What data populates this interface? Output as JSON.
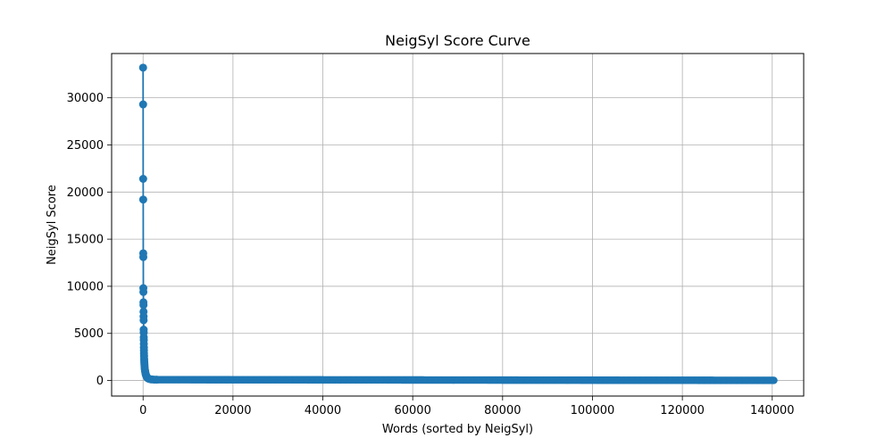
{
  "chart_data": {
    "type": "line",
    "title": "NeigSyl Score Curve",
    "xlabel": "Words (sorted by NeigSyl)",
    "ylabel": "NeigSyl Score",
    "xlim": [
      -7000,
      147000
    ],
    "ylim": [
      -1650,
      34700
    ],
    "xticks": [
      0,
      20000,
      40000,
      60000,
      80000,
      100000,
      120000,
      140000
    ],
    "xtick_labels": [
      "0",
      "20000",
      "40000",
      "60000",
      "80000",
      "100000",
      "120000",
      "140000"
    ],
    "yticks": [
      0,
      5000,
      10000,
      15000,
      20000,
      25000,
      30000
    ],
    "ytick_labels": [
      "0",
      "5000",
      "10000",
      "15000",
      "20000",
      "25000",
      "30000"
    ],
    "grid": true,
    "marker": "circle",
    "series": [
      {
        "color": "#1f77b4",
        "points": [
          [
            0,
            33200
          ],
          [
            10,
            29300
          ],
          [
            20,
            21400
          ],
          [
            30,
            19200
          ],
          [
            40,
            13500
          ],
          [
            50,
            13100
          ],
          [
            60,
            9800
          ],
          [
            70,
            9400
          ],
          [
            80,
            8300
          ],
          [
            90,
            8000
          ],
          [
            100,
            7300
          ],
          [
            110,
            6800
          ],
          [
            120,
            6400
          ],
          [
            130,
            5400
          ],
          [
            140,
            5100
          ],
          [
            150,
            4600
          ],
          [
            160,
            4300
          ],
          [
            170,
            3900
          ],
          [
            180,
            3500
          ],
          [
            190,
            3200
          ],
          [
            200,
            2900
          ],
          [
            220,
            2600
          ],
          [
            240,
            2300
          ],
          [
            260,
            2100
          ],
          [
            280,
            1900
          ],
          [
            300,
            1700
          ],
          [
            330,
            1500
          ],
          [
            360,
            1300
          ],
          [
            400,
            1150
          ],
          [
            450,
            1000
          ],
          [
            500,
            850
          ],
          [
            560,
            700
          ],
          [
            620,
            600
          ],
          [
            700,
            500
          ],
          [
            800,
            400
          ],
          [
            900,
            320
          ],
          [
            1000,
            260
          ],
          [
            1200,
            200
          ],
          [
            1400,
            160
          ],
          [
            1700,
            130
          ],
          [
            2000,
            110
          ],
          [
            2500,
            95
          ],
          [
            3000,
            85
          ]
        ],
        "tail_from": 3000,
        "tail_to": 140500,
        "tail_value_start": 85,
        "tail_value_end": 10
      }
    ]
  }
}
